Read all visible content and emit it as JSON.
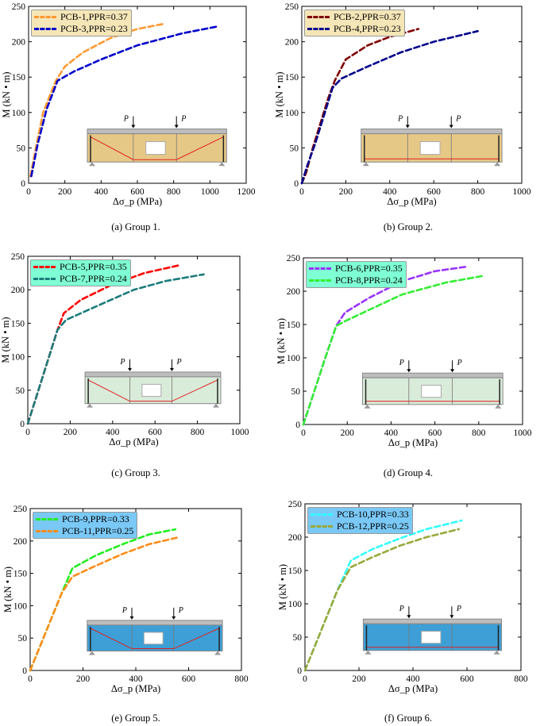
{
  "panels": [
    {
      "caption": "(a) Group 1.",
      "inset_variant": "harped",
      "inset_color": "#e6c886",
      "legend_bg": "#f5e6b8",
      "chart_data": {
        "type": "line",
        "title": "",
        "xlabel": "Δσ_p (MPa)",
        "ylabel": "M (kN • m)",
        "xlim": [
          0,
          1200
        ],
        "ylim": [
          0,
          250
        ],
        "xticks": [
          0,
          200,
          400,
          600,
          800,
          1000,
          1200
        ],
        "yticks": [
          0,
          50,
          100,
          150,
          200,
          250
        ],
        "x_tick_labels": [
          "0",
          "200",
          "400",
          "600",
          "800",
          "1000",
          "1200"
        ],
        "y_tick_labels": [
          "0",
          "50",
          "100",
          "150",
          "200",
          "250"
        ],
        "legend": "top-left",
        "series": [
          {
            "name": "PCB-1,PPR=0.37",
            "color": "#ff9933",
            "x": [
              10,
              40,
              80,
              150,
              200,
              300,
              450,
              600,
              740
            ],
            "y": [
              10,
              50,
              100,
              145,
              165,
              185,
              205,
              218,
              225
            ]
          },
          {
            "name": "PCB-3,PPR=0.23",
            "color": "#0000cc",
            "x": [
              15,
              50,
              100,
              160,
              250,
              400,
              600,
              850,
              1050
            ],
            "y": [
              10,
              55,
              105,
              145,
              158,
              175,
              195,
              212,
              222
            ]
          }
        ]
      }
    },
    {
      "caption": "(b) Group 2.",
      "inset_variant": "straight",
      "inset_color": "#e6c886",
      "legend_bg": "#f5e6b8",
      "chart_data": {
        "type": "line",
        "title": "",
        "xlabel": "Δσ_p (MPa)",
        "ylabel": "M (kN • m)",
        "xlim": [
          0,
          1000
        ],
        "ylim": [
          0,
          250
        ],
        "xticks": [
          0,
          200,
          400,
          600,
          800,
          1000
        ],
        "yticks": [
          0,
          50,
          100,
          150,
          200,
          250
        ],
        "x_tick_labels": [
          "0",
          "200",
          "400",
          "600",
          "800",
          "1000"
        ],
        "y_tick_labels": [
          "0",
          "50",
          "100",
          "150",
          "200",
          "250"
        ],
        "legend": "top-left",
        "series": [
          {
            "name": "PCB-2,PPR=0.37",
            "color": "#800000",
            "x": [
              0,
              20,
              50,
              80,
              120,
              150,
              200,
              300,
              400,
              530
            ],
            "y": [
              0,
              15,
              50,
              80,
              120,
              145,
              175,
              195,
              207,
              218
            ]
          },
          {
            "name": "PCB-4,PPR=0.23",
            "color": "#00008b",
            "x": [
              0,
              25,
              60,
              100,
              140,
              180,
              300,
              450,
              600,
              800
            ],
            "y": [
              0,
              25,
              55,
              95,
              135,
              148,
              165,
              185,
              200,
              215
            ]
          }
        ]
      }
    },
    {
      "caption": "(c) Group 3.",
      "inset_variant": "harped",
      "inset_color": "#d9ebd9",
      "legend_bg": "#7fffd4",
      "chart_data": {
        "type": "line",
        "title": "",
        "xlabel": "Δσ_p (MPa)",
        "ylabel": "M (kN • m)",
        "xlim": [
          0,
          1000
        ],
        "ylim": [
          0,
          250
        ],
        "xticks": [
          0,
          200,
          400,
          600,
          800,
          1000
        ],
        "yticks": [
          0,
          50,
          100,
          150,
          200,
          250
        ],
        "x_tick_labels": [
          "0",
          "200",
          "400",
          "600",
          "800",
          "1000"
        ],
        "y_tick_labels": [
          "0",
          "50",
          "100",
          "150",
          "200",
          "250"
        ],
        "legend": "top-left",
        "series": [
          {
            "name": "PCB-5,PPR=0.35",
            "color": "#ff0000",
            "x": [
              0,
              50,
              100,
              140,
              170,
              250,
              400,
              550,
              720
            ],
            "y": [
              0,
              50,
              100,
              140,
              165,
              185,
              208,
              225,
              237
            ]
          },
          {
            "name": "PCB-7,PPR=0.24",
            "color": "#1b7b7b",
            "x": [
              0,
              50,
              100,
              140,
              180,
              300,
              500,
              650,
              830
            ],
            "y": [
              0,
              50,
              100,
              140,
              155,
              172,
              200,
              213,
              223
            ]
          }
        ]
      }
    },
    {
      "caption": "(d) Group 4.",
      "inset_variant": "straight",
      "inset_color": "#d9ebd9",
      "legend_bg": "#7fffd4",
      "chart_data": {
        "type": "line",
        "title": "",
        "xlabel": "Δσ_p (MPa)",
        "ylabel": "M (kN • m)",
        "xlim": [
          0,
          1000
        ],
        "ylim": [
          0,
          250
        ],
        "xticks": [
          0,
          200,
          400,
          600,
          800,
          1000
        ],
        "yticks": [
          0,
          50,
          100,
          150,
          200,
          250
        ],
        "x_tick_labels": [
          "0",
          "200",
          "400",
          "600",
          "800",
          "1000"
        ],
        "y_tick_labels": [
          "0",
          "50",
          "100",
          "150",
          "200",
          "250"
        ],
        "legend": "top-left",
        "series": [
          {
            "name": "PCB-6,PPR=0.35",
            "color": "#9933ff",
            "x": [
              0,
              50,
              100,
              150,
              190,
              300,
              450,
              600,
              750
            ],
            "y": [
              0,
              50,
              100,
              148,
              168,
              190,
              215,
              230,
              237
            ]
          },
          {
            "name": "PCB-8,PPR=0.24",
            "color": "#33ee33",
            "x": [
              0,
              50,
              100,
              150,
              190,
              300,
              450,
              650,
              820
            ],
            "y": [
              0,
              50,
              100,
              148,
              155,
              172,
              195,
              213,
              223
            ]
          }
        ]
      }
    },
    {
      "caption": "(e) Group 5.",
      "inset_variant": "harped",
      "inset_color": "#3d9fd6",
      "legend_bg": "#7ac8f5",
      "chart_data": {
        "type": "line",
        "title": "",
        "xlabel": "Δσ_p (MPa)",
        "ylabel": "M (kN • m)",
        "xlim": [
          0,
          800
        ],
        "ylim": [
          0,
          250
        ],
        "xticks": [
          0,
          200,
          400,
          600,
          800
        ],
        "yticks": [
          0,
          50,
          100,
          150,
          200,
          250
        ],
        "x_tick_labels": [
          "0",
          "200",
          "400",
          "600",
          "800"
        ],
        "y_tick_labels": [
          "0",
          "50",
          "100",
          "150",
          "200",
          "250"
        ],
        "legend": "top-left",
        "series": [
          {
            "name": "PCB-9,PPR=0.33",
            "color": "#22ee22",
            "x": [
              0,
              40,
              80,
              120,
              160,
              250,
              350,
              450,
              550
            ],
            "y": [
              0,
              40,
              80,
              120,
              158,
              178,
              195,
              210,
              218
            ]
          },
          {
            "name": "PCB-11,PPR=0.25",
            "color": "#ff8c1a",
            "x": [
              0,
              40,
              80,
              120,
              160,
              250,
              350,
              450,
              555
            ],
            "y": [
              0,
              40,
              80,
              120,
              145,
              162,
              180,
              195,
              205
            ]
          }
        ]
      }
    },
    {
      "caption": "(f) Group 6.",
      "inset_variant": "straight",
      "inset_color": "#3d9fd6",
      "legend_bg": "#7ac8f5",
      "chart_data": {
        "type": "line",
        "title": "",
        "xlabel": "Δσ_p (MPa)",
        "ylabel": "M (kN • m)",
        "xlim": [
          0,
          800
        ],
        "ylim": [
          0,
          250
        ],
        "xticks": [
          0,
          200,
          400,
          600,
          800
        ],
        "yticks": [
          0,
          50,
          100,
          150,
          200,
          250
        ],
        "x_tick_labels": [
          "0",
          "200",
          "400",
          "600",
          "800"
        ],
        "y_tick_labels": [
          "0",
          "50",
          "100",
          "150",
          "200",
          "250"
        ],
        "legend": "top-left",
        "series": [
          {
            "name": "PCB-10,PPR=0.33",
            "color": "#33ffff",
            "x": [
              0,
              40,
              80,
              120,
              170,
              250,
              350,
              450,
              580
            ],
            "y": [
              0,
              40,
              80,
              120,
              165,
              182,
              198,
              212,
              225
            ]
          },
          {
            "name": "PCB-12,PPR=0.25",
            "color": "#9aa83a",
            "x": [
              0,
              40,
              80,
              120,
              170,
              250,
              350,
              450,
              570
            ],
            "y": [
              0,
              40,
              80,
              120,
              155,
              170,
              187,
              200,
              212
            ]
          }
        ]
      }
    }
  ],
  "inset_labels": {
    "load_left": "P",
    "load_right": "P"
  }
}
